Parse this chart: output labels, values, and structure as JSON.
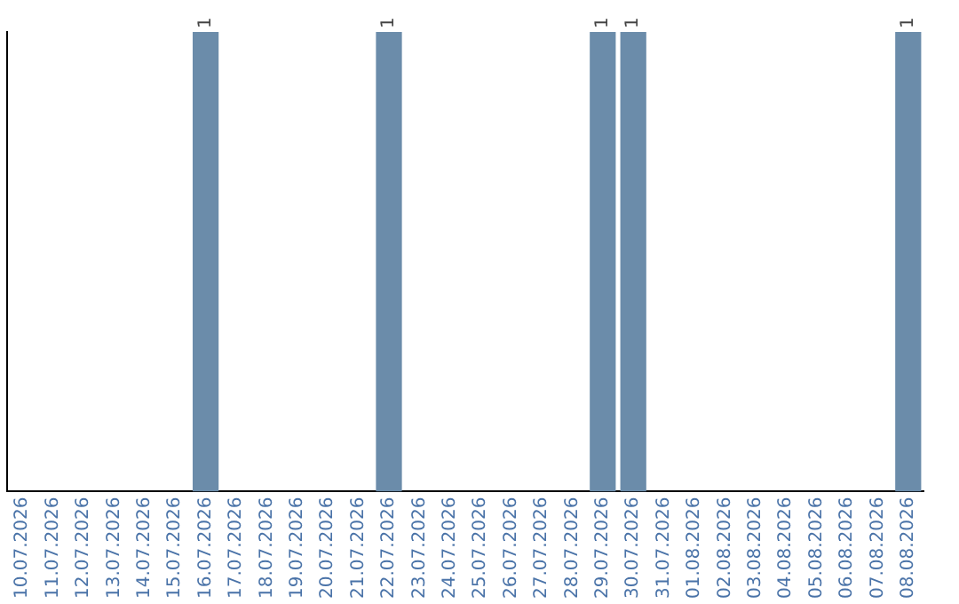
{
  "chart_data": {
    "type": "bar",
    "categories": [
      "10.07.2026",
      "11.07.2026",
      "12.07.2026",
      "13.07.2026",
      "14.07.2026",
      "15.07.2026",
      "16.07.2026",
      "17.07.2026",
      "18.07.2026",
      "19.07.2026",
      "20.07.2026",
      "21.07.2026",
      "22.07.2026",
      "23.07.2026",
      "24.07.2026",
      "25.07.2026",
      "26.07.2026",
      "27.07.2026",
      "28.07.2026",
      "29.07.2026",
      "30.07.2026",
      "31.07.2026",
      "01.08.2026",
      "02.08.2026",
      "03.08.2026",
      "04.08.2026",
      "05.08.2026",
      "06.08.2026",
      "07.08.2026",
      "08.08.2026"
    ],
    "values": [
      0,
      0,
      0,
      0,
      0,
      0,
      1,
      0,
      0,
      0,
      0,
      0,
      1,
      0,
      0,
      0,
      0,
      0,
      0,
      1,
      1,
      0,
      0,
      0,
      0,
      0,
      0,
      0,
      0,
      1
    ],
    "value_labels": [
      null,
      null,
      null,
      null,
      null,
      null,
      "1",
      null,
      null,
      null,
      null,
      null,
      "1",
      null,
      null,
      null,
      null,
      null,
      null,
      "1",
      "1",
      null,
      null,
      null,
      null,
      null,
      null,
      null,
      null,
      "1"
    ],
    "color": "#6b8caa",
    "grid": false,
    "legend": false,
    "tick_labels": "x"
  }
}
